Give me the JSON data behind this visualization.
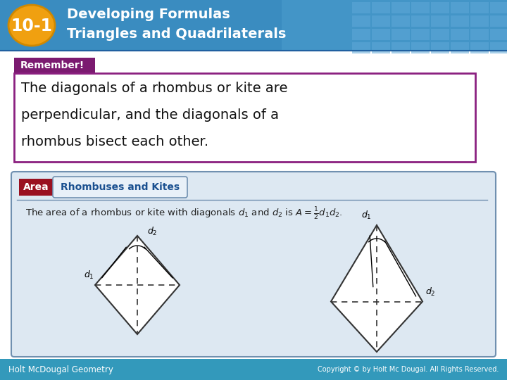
{
  "title_number": "10-1",
  "title_line1": "Developing Formulas",
  "title_line2": "Triangles and Quadrilaterals",
  "header_bg_color": "#3a8cc0",
  "number_badge_color": "#f0a010",
  "number_badge_edge": "#d08800",
  "number_text_color": "#ffffff",
  "title_text_color": "#ffffff",
  "remember_label": "Remember!",
  "remember_label_bg": "#7b1a70",
  "remember_label_text_color": "#ffffff",
  "remember_box_border": "#8b2080",
  "remember_text_line1": "The diagonals of a rhombus or kite are",
  "remember_text_line2": "perpendicular, and the diagonals of a",
  "remember_text_line3": "rhombus bisect each other.",
  "remember_text_color": "#111111",
  "area_label": "Area",
  "area_label_bg": "#9a1020",
  "area_label_text_color": "#ffffff",
  "area_subtitle": "Rhombuses and Kites",
  "area_subtitle_bg": "#e8f0f8",
  "area_subtitle_border": "#7090b0",
  "area_subtitle_text_color": "#1a5090",
  "area_box_bg": "#dde8f2",
  "area_box_border": "#7090b0",
  "formula_text": "The area of a rhombus or kite with diagonals $d_1$ and $d_2$ is $A = \\frac{1}{2}d_1d_2$.",
  "formula_text_color": "#222222",
  "footer_bg": "#3399bb",
  "footer_left_text": "Holt McDougal Geometry",
  "footer_right_text": "Copyright © by Holt Mc Dougal. All Rights Reserved.",
  "footer_text_color": "#ffffff",
  "slide_bg": "#ffffff",
  "grid_cell_color": "#5fa8d8"
}
